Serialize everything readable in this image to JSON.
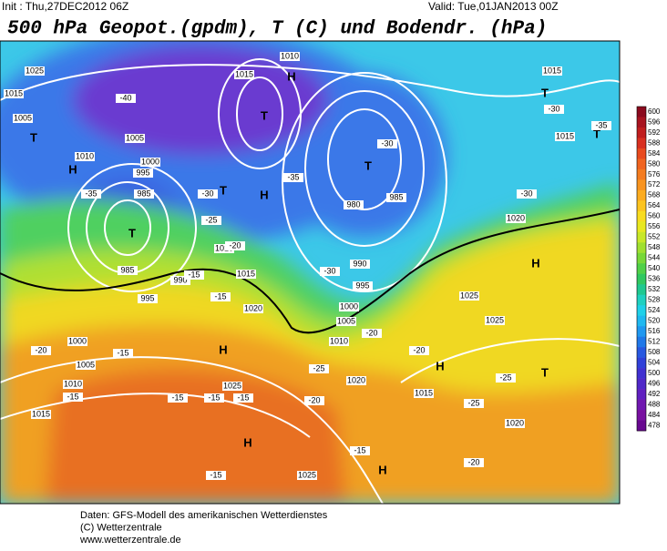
{
  "header": {
    "init": "Init : Thu,27DEC2012 06Z",
    "valid": "Valid: Tue,01JAN2013 00Z",
    "title": "500 hPa Geopot.(gpdm), T (C) und Bodendr. (hPa)"
  },
  "colorbar": {
    "labels": [
      "600",
      "596",
      "592",
      "588",
      "584",
      "580",
      "576",
      "572",
      "568",
      "564",
      "560",
      "556",
      "552",
      "548",
      "544",
      "540",
      "536",
      "532",
      "528",
      "524",
      "520",
      "516",
      "512",
      "508",
      "504",
      "500",
      "496",
      "492",
      "488",
      "484",
      "478"
    ],
    "colors": [
      "#8b0a1e",
      "#a81420",
      "#c01e1e",
      "#d83020",
      "#e84a1e",
      "#f06420",
      "#f47c20",
      "#f89420",
      "#fcac20",
      "#fcc420",
      "#f8dc20",
      "#e8e820",
      "#c8e828",
      "#a0e030",
      "#78d838",
      "#50d048",
      "#30c860",
      "#20c890",
      "#20d0c0",
      "#20d0e8",
      "#20b8f0",
      "#2098f0",
      "#2078e8",
      "#2858e0",
      "#3040d8",
      "#4030d0",
      "#5028c8",
      "#6020c0",
      "#7018b0",
      "#7810a0",
      "#680890"
    ]
  },
  "map": {
    "labels": [
      "1025",
      "1015",
      "1005",
      "T",
      "H",
      "1010",
      "1005",
      "1000",
      "995",
      "985",
      "T",
      "985",
      "990",
      "995",
      "1010",
      "1015",
      "1020",
      "1000",
      "1005",
      "1010",
      "1015",
      "1025",
      "H",
      "H",
      "1025",
      "H",
      "1015",
      "1020",
      "H",
      "T",
      "1025",
      "1025",
      "H",
      "1020",
      "T",
      "980",
      "985",
      "990",
      "995",
      "1000",
      "1005",
      "1010",
      "1020",
      "T",
      "1015",
      "1015",
      "T",
      "H",
      "1010",
      "1015",
      "T",
      "T",
      "H",
      "-35",
      "-30",
      "-25",
      "-20",
      "-15",
      "-15",
      "-20",
      "-15",
      "-15",
      "-15",
      "-15",
      "-15",
      "-15",
      "-15",
      "-20",
      "-25",
      "-20",
      "-20",
      "-25",
      "-25",
      "-20",
      "-30",
      "-35",
      "-30",
      "-30",
      "-35",
      "-30",
      "-40"
    ]
  },
  "footer": {
    "lines": [
      "Daten: GFS-Modell des amerikanischen Wetterdienstes",
      "(C) Wetterzentrale",
      "www.wetterzentrale.de"
    ]
  }
}
